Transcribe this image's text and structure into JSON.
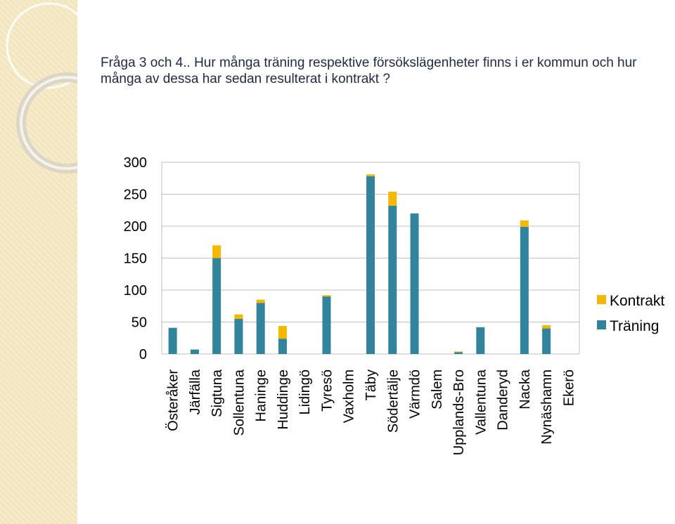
{
  "title": "Fråga 3 och 4.. Hur många träning respektive försökslägenheter finns i er kommun och hur många av dessa har sedan resulterat i kontrakt ?",
  "colors": {
    "traning": "#31849b",
    "kontrakt": "#f5b800",
    "grid": "#bfbfbf",
    "panel": "#f3e6bf"
  },
  "chart_data": {
    "type": "bar",
    "stacked": true,
    "categories": [
      "Österåker",
      "Järfälla",
      "Sigtuna",
      "Sollentuna",
      "Haninge",
      "Huddinge",
      "Lidingö",
      "Tyresö",
      "Vaxholm",
      "Täby",
      "Södertälje",
      "Värmdö",
      "Salem",
      "Upplands-Bro",
      "Vallentuna",
      "Danderyd",
      "Nacka",
      "Nynäshamn",
      "Ekerö"
    ],
    "series": [
      {
        "name": "Träning",
        "color": "#31849b",
        "values": [
          41,
          7,
          150,
          55,
          80,
          24,
          0,
          90,
          0,
          278,
          232,
          220,
          0,
          3,
          42,
          0,
          199,
          40,
          0
        ]
      },
      {
        "name": "Kontrakt",
        "color": "#f5b800",
        "values": [
          0,
          0,
          20,
          7,
          5,
          20,
          0,
          2,
          0,
          3,
          22,
          0,
          0,
          1,
          0,
          0,
          10,
          5,
          0
        ]
      }
    ],
    "yticks": [
      "0",
      "50",
      "100",
      "150",
      "200",
      "250",
      "300"
    ],
    "ylim": [
      0,
      300
    ],
    "grid": true,
    "legend_position": "right"
  }
}
